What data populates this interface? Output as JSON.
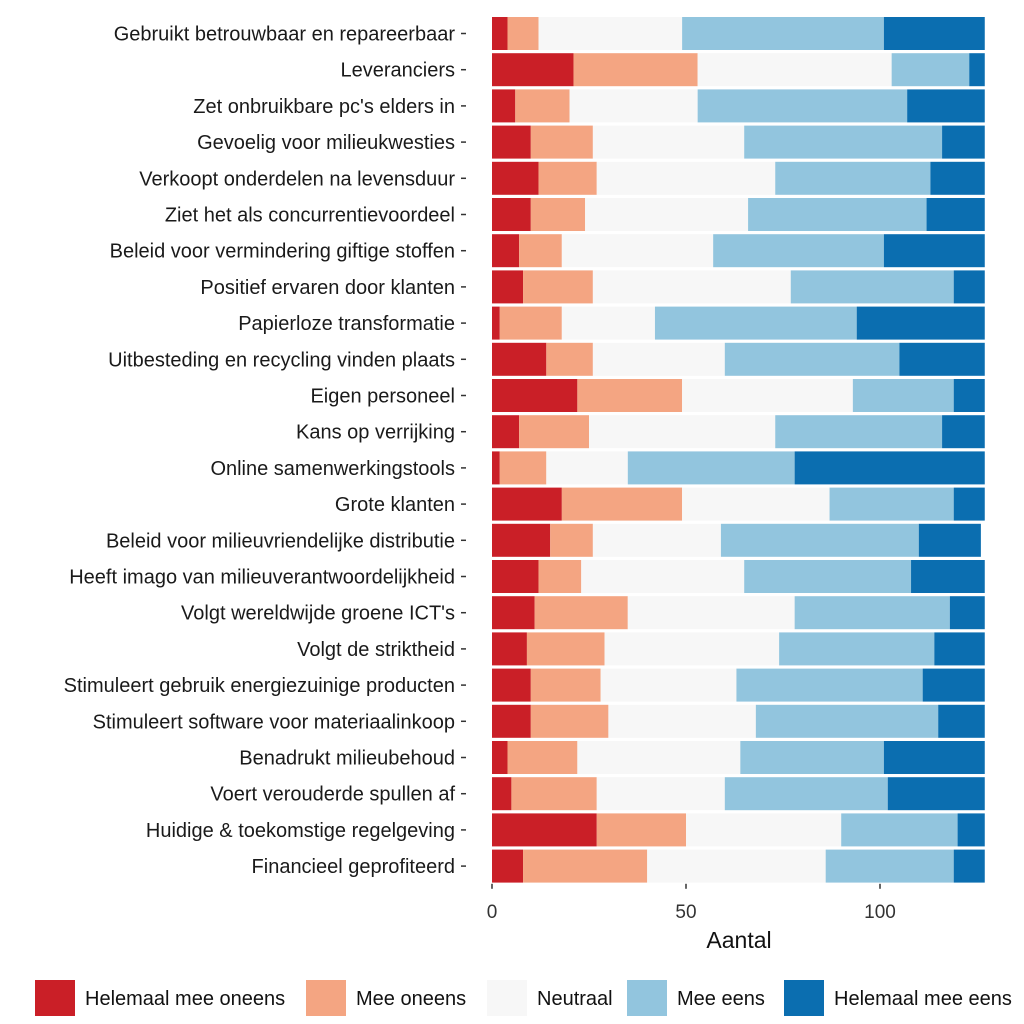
{
  "chart_data": {
    "type": "bar",
    "orientation": "horizontal",
    "stacked": true,
    "xlabel": "Aantal",
    "xlim": [
      0,
      127
    ],
    "xticks": [
      0,
      50,
      100
    ],
    "grid": false,
    "legend_position": "bottom",
    "categories": [
      "Gebruikt betrouwbaar en repareerbaar",
      "Leveranciers",
      "Zet onbruikbare pc's elders in",
      "Gevoelig voor milieukwesties",
      "Verkoopt onderdelen na levensduur",
      "Ziet het als concurrentievoordeel",
      "Beleid voor vermindering giftige stoffen",
      "Positief ervaren door klanten",
      "Papierloze transformatie",
      "Uitbesteding en recycling vinden plaats",
      "Eigen personeel",
      "Kans op verrijking",
      "Online samenwerkingstools",
      "Grote klanten",
      "Beleid voor milieuvriendelijke distributie",
      "Heeft imago van milieuverantwoordelijkheid",
      "Volgt wereldwijde groene ICT's",
      "Volgt de striktheid",
      "Stimuleert gebruik energiezuinige producten",
      "Stimuleert software voor materiaalinkoop",
      "Benadrukt milieubehoud",
      "Voert verouderde spullen af",
      "Huidige & toekomstige regelgeving",
      "Financieel geprofiteerd"
    ],
    "series": [
      {
        "name": "Helemaal mee oneens",
        "color": "#CA1F27",
        "values": [
          4,
          21,
          6,
          10,
          12,
          10,
          7,
          8,
          2,
          14,
          22,
          7,
          2,
          18,
          15,
          12,
          11,
          9,
          10,
          10,
          4,
          5,
          27,
          8
        ]
      },
      {
        "name": "Mee oneens",
        "color": "#F4A582",
        "values": [
          8,
          32,
          14,
          16,
          15,
          14,
          11,
          18,
          16,
          12,
          27,
          18,
          12,
          31,
          11,
          11,
          24,
          20,
          18,
          20,
          18,
          22,
          23,
          32
        ]
      },
      {
        "name": "Neutraal",
        "color": "#F7F7F7",
        "values": [
          37,
          50,
          33,
          39,
          46,
          42,
          39,
          51,
          24,
          34,
          44,
          48,
          21,
          38,
          33,
          42,
          43,
          45,
          35,
          38,
          42,
          33,
          40,
          46
        ]
      },
      {
        "name": "Mee eens",
        "color": "#92C5DE",
        "values": [
          52,
          20,
          54,
          51,
          40,
          46,
          44,
          42,
          52,
          45,
          26,
          43,
          43,
          32,
          51,
          43,
          40,
          40,
          48,
          47,
          37,
          42,
          30,
          33
        ]
      },
      {
        "name": "Helemaal mee eens",
        "color": "#0B6EB0",
        "values": [
          26,
          4,
          20,
          11,
          14,
          15,
          26,
          8,
          33,
          22,
          8,
          11,
          49,
          8,
          16,
          19,
          9,
          13,
          16,
          12,
          26,
          25,
          7,
          8
        ]
      }
    ]
  }
}
